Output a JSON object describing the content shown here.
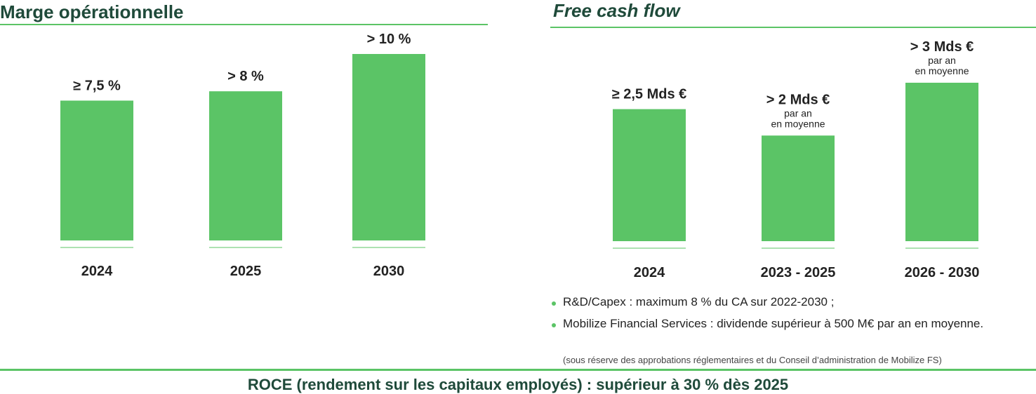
{
  "left_title": "Marge opérationnelle",
  "right_title": "Free cash flow",
  "colors": {
    "bar": "#5bc466",
    "title": "#1f4a3a"
  },
  "chart_data": [
    {
      "type": "bar",
      "title": "Marge opérationnelle",
      "categories": [
        "2024",
        "2025",
        "2030"
      ],
      "values": [
        7.5,
        8,
        10
      ],
      "value_labels": [
        "≥ 7,5 %",
        "> 8 %",
        "> 10 %"
      ],
      "sub_labels": [
        [],
        [],
        []
      ],
      "ylim": [
        0,
        10.5
      ],
      "grid": false
    },
    {
      "type": "bar",
      "title": "Free cash flow",
      "categories": [
        "2024",
        "2023 - 2025",
        "2026 - 2030"
      ],
      "values": [
        2.5,
        2,
        3
      ],
      "value_labels": [
        "≥ 2,5 Mds €",
        "> 2 Mds €",
        "> 3 Mds €"
      ],
      "sub_labels": [
        [],
        [
          "par an",
          "en moyenne"
        ],
        [
          "par an",
          "en moyenne"
        ]
      ],
      "ylim": [
        0,
        4.4
      ],
      "grid": false
    }
  ],
  "notes": [
    "R&D/Capex : maximum 8 % du CA sur 2022-2030 ;",
    "Mobilize Financial Services : dividende supérieur à 500 M€ par an en moyenne."
  ],
  "footnote": "(sous réserve des approbations réglementaires et du Conseil d’administration de Mobilize FS)",
  "roce": "ROCE (rendement sur les capitaux employés) : supérieur à 30 % dès 2025"
}
